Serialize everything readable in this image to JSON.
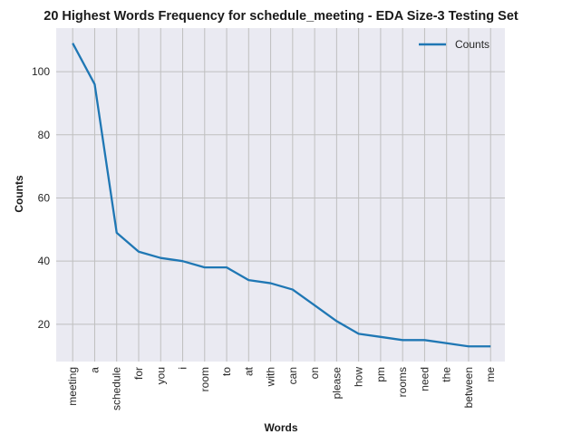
{
  "chart_data": {
    "type": "line",
    "title": "20 Highest Words Frequency for schedule_meeting - EDA Size-3 Testing Set",
    "xlabel": "Words",
    "ylabel": "Counts",
    "categories": [
      "meeting",
      "a",
      "schedule",
      "for",
      "you",
      "i",
      "room",
      "to",
      "at",
      "with",
      "can",
      "on",
      "please",
      "how",
      "pm",
      "rooms",
      "need",
      "the",
      "between",
      "me"
    ],
    "series": [
      {
        "name": "Counts",
        "values": [
          109,
          96,
          49,
          43,
          41,
          40,
          38,
          38,
          34,
          33,
          31,
          26,
          21,
          17,
          16,
          15,
          15,
          14,
          13,
          13
        ],
        "color": "#1f77b4"
      }
    ],
    "ylim": [
      8.2,
      113.8
    ],
    "yticks": [
      20,
      40,
      60,
      80,
      100
    ],
    "grid": true,
    "legend_position": "top-right",
    "background": "#eaeaf2",
    "grid_color": "#bfbfbf"
  }
}
